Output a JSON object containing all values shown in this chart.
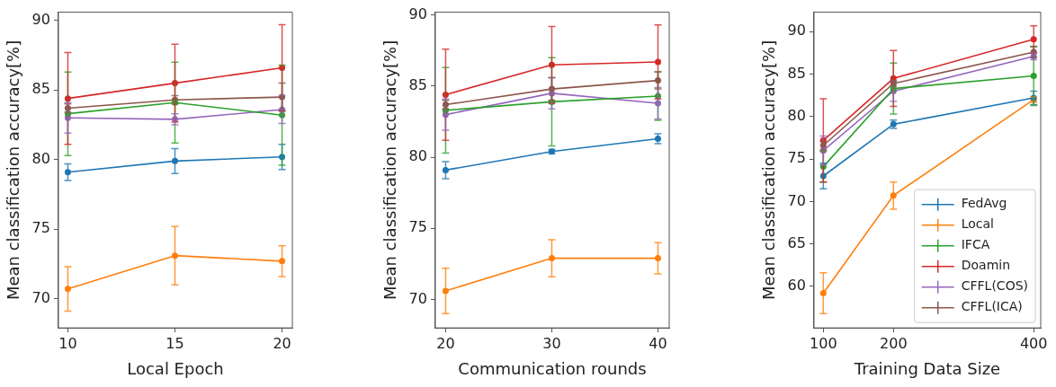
{
  "chart_data": [
    {
      "type": "line",
      "xlabel": "Local Epoch",
      "ylabel": "Mean classification accuracy[%]",
      "x": [
        10,
        15,
        20
      ],
      "xlim": [
        9.56,
        20.48
      ],
      "xticks": [
        10,
        15,
        20
      ],
      "ylim": [
        67.9,
        90.6
      ],
      "yticks": [
        70,
        75,
        80,
        85,
        90
      ],
      "marker": "circle",
      "series": [
        {
          "color": "#1f77b4",
          "values": [
            79.1,
            79.9,
            80.2
          ],
          "errors": [
            0.6,
            0.9,
            0.9
          ]
        },
        {
          "color": "#ff7f0e",
          "values": [
            70.7,
            73.1,
            72.7
          ],
          "errors": [
            1.6,
            2.1,
            1.1
          ]
        },
        {
          "color": "#2ca02c",
          "values": [
            83.3,
            84.1,
            83.2
          ],
          "errors": [
            3.0,
            2.9,
            3.6
          ]
        },
        {
          "color": "#d62728",
          "values": [
            84.4,
            85.5,
            86.6
          ],
          "errors": [
            3.3,
            2.8,
            3.1
          ]
        },
        {
          "color": "#9467bd",
          "values": [
            83.0,
            82.9,
            83.6
          ],
          "errors": [
            1.1,
            0.4,
            1.0
          ]
        },
        {
          "color": "#8c564b",
          "values": [
            83.7,
            84.3,
            84.5
          ],
          "errors": [
            0.3,
            0.3,
            1.0
          ]
        }
      ]
    },
    {
      "type": "line",
      "xlabel": "Communication rounds",
      "ylabel": "Mean classification accuracy[%]",
      "x": [
        20,
        30,
        40
      ],
      "xlim": [
        19.03,
        41.06
      ],
      "xticks": [
        20,
        30,
        40
      ],
      "ylim": [
        68.0,
        90.2
      ],
      "yticks": [
        70,
        75,
        80,
        85,
        90
      ],
      "marker": "circle",
      "series": [
        {
          "color": "#1f77b4",
          "values": [
            79.1,
            80.4,
            81.3
          ],
          "errors": [
            0.6,
            0.15,
            0.35
          ]
        },
        {
          "color": "#ff7f0e",
          "values": [
            70.6,
            72.9,
            72.9
          ],
          "errors": [
            1.6,
            1.3,
            1.1
          ]
        },
        {
          "color": "#2ca02c",
          "values": [
            83.3,
            83.9,
            84.3
          ],
          "errors": [
            3.0,
            3.1,
            1.7
          ]
        },
        {
          "color": "#d62728",
          "values": [
            84.4,
            86.5,
            86.7
          ],
          "errors": [
            3.2,
            2.7,
            2.6
          ]
        },
        {
          "color": "#9467bd",
          "values": [
            83.0,
            84.5,
            83.8
          ],
          "errors": [
            1.1,
            1.1,
            1.1
          ]
        },
        {
          "color": "#8c564b",
          "values": [
            83.7,
            84.8,
            85.4
          ],
          "errors": [
            0.3,
            0.8,
            0.6
          ]
        }
      ]
    },
    {
      "type": "line",
      "xlabel": "Training Data Size",
      "ylabel": "Mean classification accuracy[%]",
      "x": [
        100,
        200,
        400
      ],
      "xlim": [
        86.7,
        410
      ],
      "xticks": [
        100,
        200,
        400
      ],
      "ylim": [
        55.1,
        92.3
      ],
      "yticks": [
        60,
        65,
        70,
        75,
        80,
        85,
        90
      ],
      "marker": "circle",
      "legend": "bottom right",
      "series": [
        {
          "name": "FedAvg",
          "color": "#1f77b4",
          "values": [
            73.0,
            79.1,
            82.2
          ],
          "errors": [
            1.5,
            0.5,
            0.8
          ]
        },
        {
          "name": "Local",
          "color": "#ff7f0e",
          "values": [
            59.2,
            70.7,
            82.0
          ],
          "errors": [
            2.4,
            1.6,
            0.3
          ]
        },
        {
          "name": "IFCA",
          "color": "#2ca02c",
          "values": [
            74.1,
            83.3,
            84.8
          ],
          "errors": [
            1.8,
            3.0,
            3.5
          ]
        },
        {
          "name": "Doamin",
          "color": "#d62728",
          "values": [
            77.2,
            84.5,
            89.1
          ],
          "errors": [
            4.9,
            3.3,
            1.6
          ]
        },
        {
          "name": "CFFL(COS)",
          "color": "#9467bd",
          "values": [
            76.0,
            83.0,
            87.1
          ],
          "errors": [
            1.7,
            1.2,
            0.4
          ]
        },
        {
          "name": "CFFL(ICA)",
          "color": "#8c564b",
          "values": [
            76.6,
            83.9,
            87.6
          ],
          "errors": [
            0.5,
            0.3,
            0.6
          ]
        }
      ]
    }
  ]
}
